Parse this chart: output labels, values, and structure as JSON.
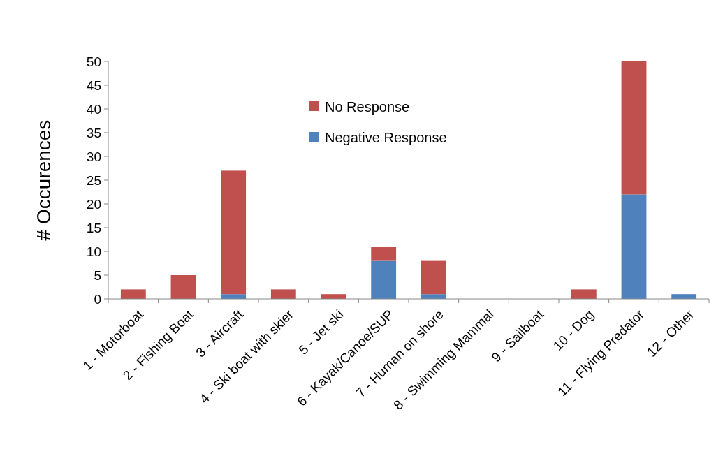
{
  "chart_data": {
    "type": "bar",
    "stacked": true,
    "ylabel": "# Occurences",
    "categories": [
      "1 - Motorboat",
      "2 - Fishing Boat",
      "3 - Aircraft",
      "4 - Ski boat with skier",
      "5 - Jet ski",
      "6 - Kayak/Canoe/SUP",
      "7 - Human on shore",
      "8 - Swimming Mammal",
      "9 - Sailboat",
      "10 - Dog",
      "11 - Flying Predator",
      "12 - Other"
    ],
    "series": [
      {
        "name": "Negative Response",
        "color": "#4f81bd",
        "values": [
          0,
          0,
          1,
          0,
          0,
          8,
          1,
          0,
          0,
          0,
          22,
          1
        ]
      },
      {
        "name": "No Response",
        "color": "#c0504d",
        "values": [
          2,
          5,
          26,
          2,
          1,
          3,
          7,
          0,
          0,
          2,
          28,
          0
        ]
      }
    ],
    "ylim": [
      0,
      50
    ],
    "yticks": [
      0,
      5,
      10,
      15,
      20,
      25,
      30,
      35,
      40,
      45,
      50
    ],
    "grid": false,
    "legend": "top"
  }
}
